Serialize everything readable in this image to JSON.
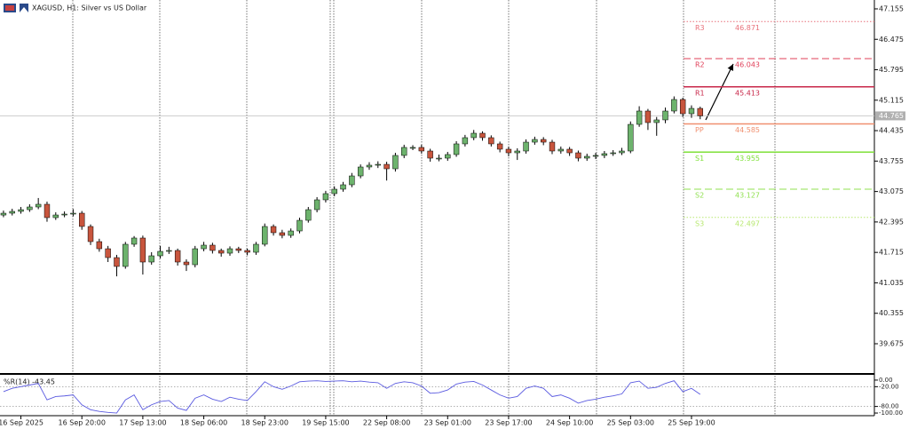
{
  "chart_data": [
    {
      "type": "candlestick",
      "title": "XAGUSD, H1:  Silver vs US Dollar",
      "up_color": "#6db36d",
      "down_color": "#c8553d",
      "wick_color": "#000000",
      "xlim": [
        -0.4,
        100
      ],
      "ylim": [
        39.02,
        47.353
      ],
      "yticks": [
        47.155,
        46.475,
        45.795,
        45.115,
        44.435,
        43.755,
        43.075,
        42.395,
        41.715,
        41.035,
        40.355,
        39.675
      ],
      "open": [
        42.55,
        42.591,
        42.631,
        42.67,
        42.73,
        42.79,
        42.492,
        42.551,
        42.571,
        42.591,
        42.294,
        41.956,
        41.797,
        41.599,
        41.401,
        41.897,
        42.036,
        41.5,
        41.639,
        41.738,
        41.758,
        41.5,
        41.44,
        41.797,
        41.877,
        41.758,
        41.698,
        41.797,
        41.758,
        41.718,
        41.897,
        42.294,
        42.155,
        42.095,
        42.194,
        42.432,
        42.67,
        42.889,
        43.028,
        43.127,
        43.226,
        43.424,
        43.623,
        43.663,
        43.682,
        43.583,
        43.881,
        44.06,
        44.06,
        43.98,
        43.821,
        43.821,
        43.901,
        44.139,
        44.278,
        44.377,
        44.278,
        44.139,
        44.02,
        43.94,
        43.98,
        44.178,
        44.238,
        44.178,
        43.98,
        44.02,
        43.94,
        43.821,
        43.861,
        43.881,
        43.921,
        43.94,
        43.98,
        44.575,
        44.873,
        44.615,
        44.675,
        44.873,
        45.131,
        44.813,
        44.932
      ],
      "high": [
        42.65,
        42.69,
        42.73,
        42.79,
        42.93,
        42.85,
        42.61,
        42.63,
        42.68,
        42.64,
        42.34,
        42.02,
        41.86,
        41.66,
        41.95,
        42.08,
        42.09,
        41.72,
        41.86,
        41.84,
        41.8,
        41.56,
        41.86,
        41.95,
        41.93,
        41.8,
        41.85,
        41.84,
        41.8,
        41.95,
        42.36,
        42.34,
        42.22,
        42.25,
        42.49,
        42.73,
        42.95,
        43.09,
        43.19,
        43.29,
        43.49,
        43.68,
        43.73,
        43.75,
        43.74,
        43.94,
        44.12,
        44.11,
        44.12,
        44.03,
        43.9,
        43.96,
        44.2,
        44.34,
        44.45,
        44.42,
        44.33,
        44.19,
        44.08,
        44.04,
        44.24,
        44.3,
        44.29,
        44.23,
        44.08,
        44.07,
        43.99,
        43.92,
        43.94,
        43.98,
        44,
        44.05,
        44.64,
        44.98,
        44.92,
        44.74,
        44.95,
        45.2,
        45.17,
        45,
        44.97
      ],
      "low": [
        42.5,
        42.54,
        42.58,
        42.62,
        42.68,
        42.4,
        42.44,
        42.5,
        42.52,
        42.22,
        41.88,
        41.73,
        41.5,
        41.18,
        41.35,
        41.84,
        41.22,
        41.44,
        41.58,
        41.68,
        41.42,
        41.3,
        41.38,
        41.74,
        41.69,
        41.62,
        41.64,
        41.7,
        41.65,
        41.66,
        41.85,
        42.09,
        42.03,
        42.04,
        42.14,
        42.38,
        42.61,
        42.83,
        42.97,
        43.07,
        43.17,
        43.37,
        43.56,
        43.6,
        43.32,
        43.52,
        43.82,
        44,
        43.92,
        43.74,
        43.75,
        43.76,
        43.85,
        44.08,
        44.22,
        44.21,
        44.08,
        43.95,
        43.86,
        43.78,
        43.92,
        44.12,
        44.11,
        43.91,
        43.92,
        43.87,
        43.75,
        43.76,
        43.8,
        43.82,
        43.87,
        43.89,
        43.93,
        44.52,
        44.45,
        44.32,
        44.6,
        44.82,
        44.74,
        44.72,
        44.69
      ],
      "close": [
        42.591,
        42.631,
        42.67,
        42.73,
        42.79,
        42.492,
        42.551,
        42.571,
        42.591,
        42.294,
        41.956,
        41.797,
        41.599,
        41.401,
        41.897,
        42.036,
        41.5,
        41.639,
        41.738,
        41.758,
        41.5,
        41.44,
        41.797,
        41.877,
        41.758,
        41.698,
        41.797,
        41.758,
        41.718,
        41.897,
        42.294,
        42.155,
        42.095,
        42.194,
        42.432,
        42.67,
        42.889,
        43.028,
        43.127,
        43.226,
        43.424,
        43.623,
        43.663,
        43.682,
        43.583,
        43.881,
        44.06,
        44.06,
        43.98,
        43.821,
        43.821,
        43.901,
        44.139,
        44.278,
        44.377,
        44.278,
        44.139,
        44.02,
        43.94,
        43.98,
        44.178,
        44.238,
        44.178,
        43.98,
        44.02,
        43.94,
        43.821,
        43.861,
        43.881,
        43.921,
        43.94,
        43.98,
        44.575,
        44.873,
        44.615,
        44.675,
        44.873,
        45.131,
        44.813,
        44.932,
        44.765
      ],
      "last_price": 44.765,
      "levels": [
        {
          "name": "R3",
          "value": 46.871,
          "color": "#e8707a",
          "style": "dotted"
        },
        {
          "name": "R2",
          "value": 46.043,
          "color": "#e0405a",
          "style": "dashed"
        },
        {
          "name": "R1",
          "value": 45.413,
          "color": "#c8284a",
          "style": "solid"
        },
        {
          "name": "PP",
          "value": 44.585,
          "color": "#f09070",
          "style": "solid"
        },
        {
          "name": "S1",
          "value": 43.955,
          "color": "#7fe03a",
          "style": "solid"
        },
        {
          "name": "S2",
          "value": 43.127,
          "color": "#90e050",
          "style": "dashed"
        },
        {
          "name": "S3",
          "value": 42.497,
          "color": "#b8e870",
          "style": "dotted"
        }
      ]
    },
    {
      "type": "line",
      "label": "%R(14) -43.45",
      "color": "#5a5ae0",
      "xlim": [
        -0.4,
        100
      ],
      "ylim": [
        -108,
        16
      ],
      "yticks": [
        {
          "value": 0,
          "label": "0.00"
        },
        {
          "value": -20,
          "label": "-20.00"
        },
        {
          "value": -80,
          "label": "-80.00"
        },
        {
          "value": -100,
          "label": "-100.00"
        }
      ],
      "levels": [
        -20,
        -80
      ],
      "values": [
        -35,
        -25,
        -20,
        -15,
        -10,
        -60,
        -50,
        -48,
        -45,
        -75,
        -90,
        -95,
        -98,
        -100,
        -60,
        -45,
        -90,
        -75,
        -65,
        -62,
        -85,
        -92,
        -55,
        -45,
        -58,
        -65,
        -52,
        -58,
        -62,
        -35,
        -5,
        -20,
        -28,
        -18,
        -5,
        -3,
        -2,
        -4,
        -3,
        -2,
        -5,
        -3,
        -6,
        -8,
        -25,
        -10,
        -5,
        -8,
        -18,
        -40,
        -38,
        -30,
        -12,
        -6,
        -4,
        -15,
        -30,
        -45,
        -55,
        -50,
        -25,
        -18,
        -25,
        -50,
        -45,
        -55,
        -70,
        -62,
        -58,
        -52,
        -48,
        -42,
        -8,
        -3,
        -25,
        -22,
        -10,
        -2,
        -35,
        -25,
        -43.45
      ],
      "xticks": [
        {
          "value": 2,
          "label": "16 Sep 2025"
        },
        {
          "value": 9,
          "label": "16 Sep 20:00"
        },
        {
          "value": 16,
          "label": "17 Sep 13:00"
        },
        {
          "value": 23,
          "label": "18 Sep 06:00"
        },
        {
          "value": 30,
          "label": "18 Sep 23:00"
        },
        {
          "value": 37,
          "label": "19 Sep 15:00"
        },
        {
          "value": 44,
          "label": "22 Sep 08:00"
        },
        {
          "value": 51,
          "label": "23 Sep 01:00"
        },
        {
          "value": 58,
          "label": "23 Sep 17:00"
        },
        {
          "value": 65,
          "label": "24 Sep 10:00"
        },
        {
          "value": 72,
          "label": "25 Sep 03:00"
        },
        {
          "value": 79,
          "label": "25 Sep 19:00"
        }
      ]
    }
  ]
}
